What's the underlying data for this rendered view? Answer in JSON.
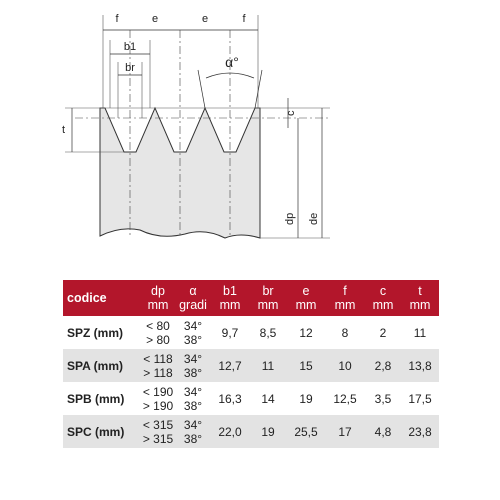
{
  "diagram": {
    "labels": {
      "f_left": "f",
      "e_left": "e",
      "e_right": "e",
      "f_right": "f",
      "b1": "b1",
      "br": "br",
      "alpha": "α°",
      "c": "c",
      "t": "t",
      "dp": "dp",
      "de": "de"
    }
  },
  "table": {
    "header": [
      [
        "codice"
      ],
      [
        "dp",
        "mm"
      ],
      [
        "α",
        "gradi"
      ],
      [
        "b1",
        "mm"
      ],
      [
        "br",
        "mm"
      ],
      [
        "e",
        "mm"
      ],
      [
        "f",
        "mm"
      ],
      [
        "c",
        "mm"
      ],
      [
        "t",
        "mm"
      ]
    ],
    "rows": [
      [
        "SPZ (mm)",
        [
          "< 80",
          "> 80"
        ],
        [
          "34°",
          "38°"
        ],
        "9,7",
        "8,5",
        "12",
        "8",
        "2",
        "11"
      ],
      [
        "SPA (mm)",
        [
          "< 118",
          "> 118"
        ],
        [
          "34°",
          "38°"
        ],
        "12,7",
        "11",
        "15",
        "10",
        "2,8",
        "13,8"
      ],
      [
        "SPB (mm)",
        [
          "< 190",
          "> 190"
        ],
        [
          "34°",
          "38°"
        ],
        "16,3",
        "14",
        "19",
        "12,5",
        "3,5",
        "17,5"
      ],
      [
        "SPC (mm)",
        [
          "< 315",
          "> 315"
        ],
        [
          "34°",
          "38°"
        ],
        "22,0",
        "19",
        "25,5",
        "17",
        "4,8",
        "23,8"
      ]
    ]
  }
}
